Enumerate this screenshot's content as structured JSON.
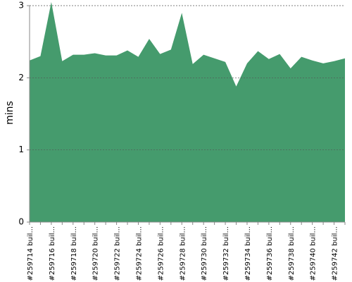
{
  "chart_data": {
    "type": "area",
    "y_label": "mins",
    "color": "#459b6d",
    "grid": true,
    "ylim": [
      0,
      3
    ],
    "yticks": [
      0,
      1,
      2,
      3
    ],
    "categories": [
      "#259714 buil...",
      null,
      "#259716 buil...",
      null,
      "#259718 buil...",
      null,
      "#259720 buil...",
      null,
      "#259722 buil...",
      null,
      "#259724 buil...",
      null,
      "#259726 buil...",
      null,
      "#259728 buil...",
      null,
      "#259730 buil...",
      null,
      "#259732 buil...",
      null,
      "#259734 buil...",
      null,
      "#259736 buil...",
      null,
      "#259738 buil...",
      null,
      "#259740 buil...",
      null,
      "#259742 buil...",
      null
    ],
    "values": [
      2.24,
      2.3,
      3.05,
      2.23,
      2.32,
      2.32,
      2.34,
      2.31,
      2.31,
      2.38,
      2.29,
      2.54,
      2.33,
      2.39,
      2.9,
      2.19,
      2.32,
      2.27,
      2.22,
      1.88,
      2.2,
      2.37,
      2.26,
      2.33,
      2.13,
      2.29,
      2.24,
      2.2,
      2.23,
      2.27
    ]
  }
}
